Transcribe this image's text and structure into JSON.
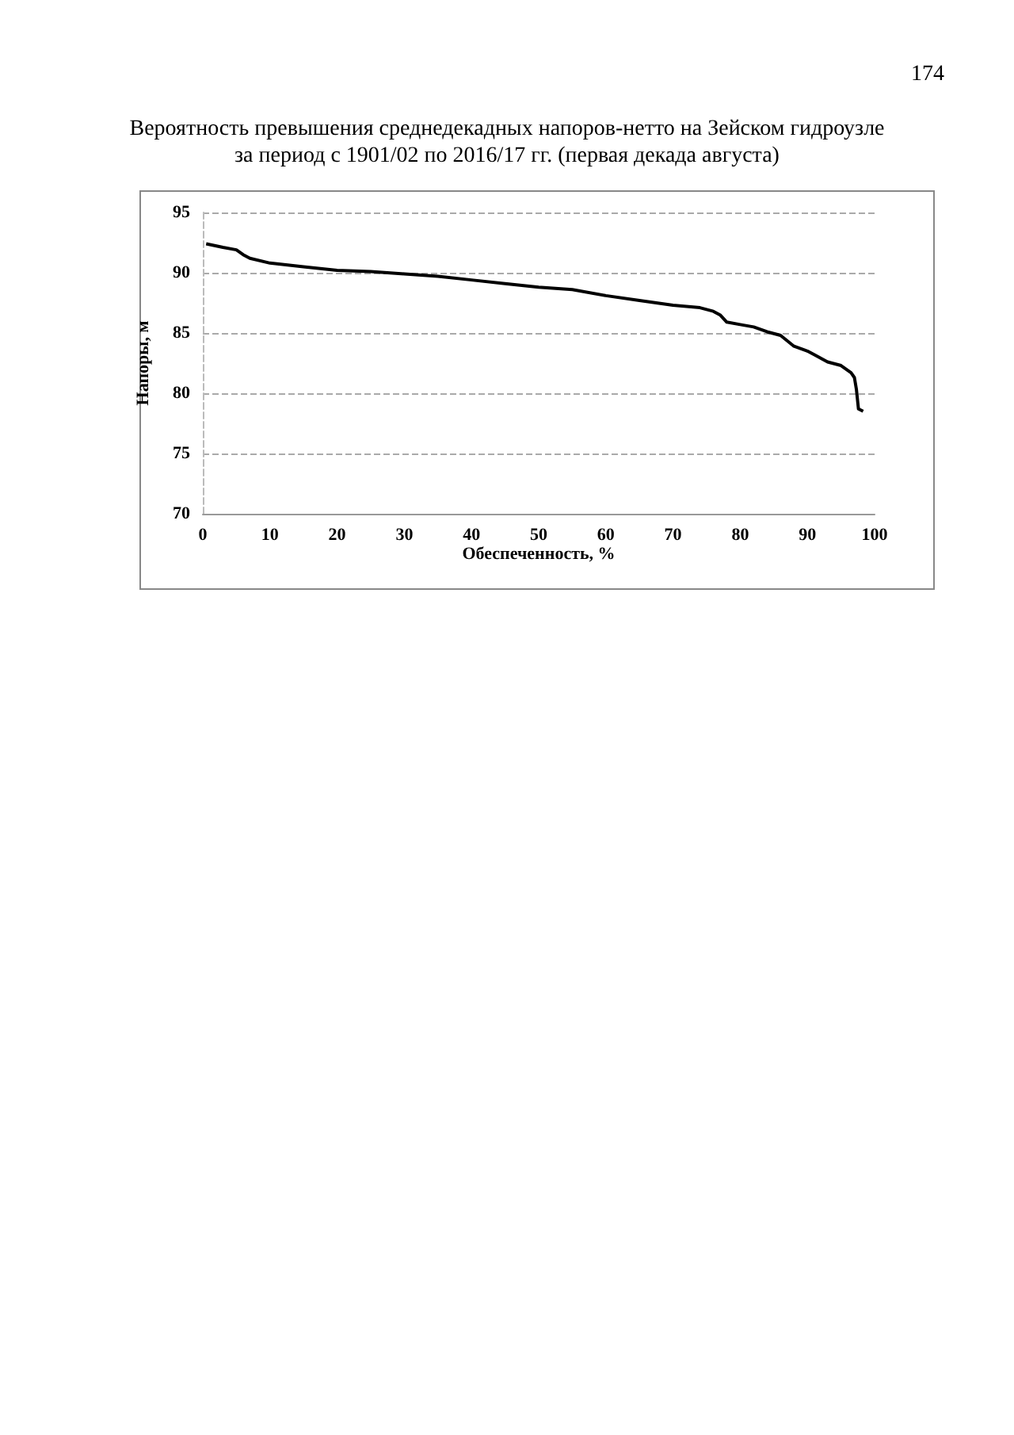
{
  "chart_data": {
    "type": "line",
    "title": "Вероятность превышения среднедекадных напоров-нетто на Зейском гидроузле\nза период с 1901/02 по 2016/17 гг. (первая декада августа)",
    "xlabel": "Обеспеченность, %",
    "ylabel": "Напоры, м",
    "annotations": [
      "174"
    ],
    "x": [
      0.5,
      3,
      5,
      6,
      7,
      10,
      15,
      20,
      25,
      30,
      35,
      40,
      45,
      50,
      55,
      60,
      65,
      70,
      74,
      76,
      77,
      78,
      80,
      82,
      84,
      86,
      88,
      90,
      91,
      93,
      95,
      96.5,
      97,
      97.3,
      97.6,
      98.3
    ],
    "series": [
      {
        "color": "#000000",
        "values": [
          92.4,
          92.1,
          91.9,
          91.5,
          91.2,
          90.8,
          90.5,
          90.2,
          90.1,
          89.9,
          89.7,
          89.4,
          89.1,
          88.8,
          88.6,
          88.1,
          87.7,
          87.3,
          87.1,
          86.8,
          86.5,
          85.9,
          85.7,
          85.5,
          85.1,
          84.8,
          83.9,
          83.5,
          83.2,
          82.6,
          82.3,
          81.7,
          81.3,
          80.3,
          78.7,
          78.5
        ]
      }
    ],
    "xlim": [
      0,
      100
    ],
    "xticks": [
      0,
      10,
      20,
      30,
      40,
      50,
      60,
      70,
      80,
      90,
      100
    ],
    "ylim": [
      70,
      95
    ],
    "yticks": [
      70,
      75,
      80,
      85,
      90,
      95
    ],
    "grid": "y",
    "line_style": "solid",
    "marker": "none"
  }
}
